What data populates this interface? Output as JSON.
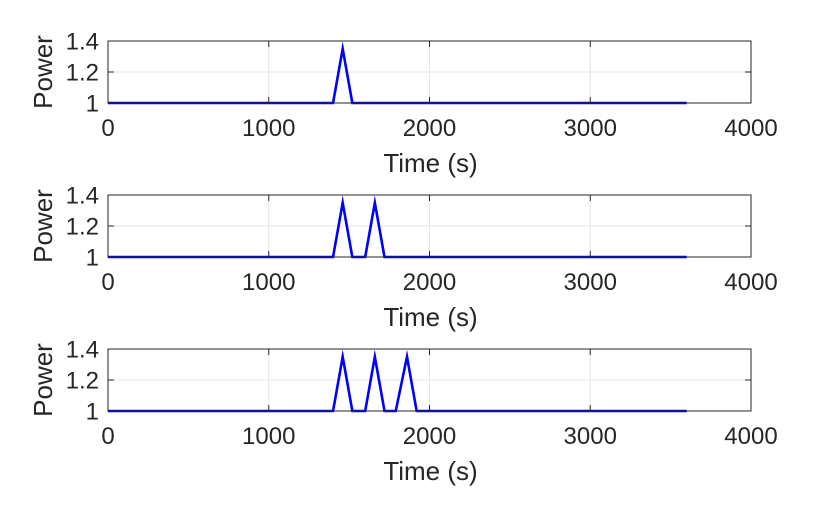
{
  "chart_data": [
    {
      "type": "line",
      "title": "",
      "xlabel": "Time (s)",
      "ylabel": "Power",
      "xlim": [
        0,
        4000
      ],
      "ylim": [
        1,
        1.4
      ],
      "xticks": [
        0,
        1000,
        2000,
        3000,
        4000
      ],
      "xtick_labels": [
        "0",
        "1000",
        "2000",
        "3000",
        "4000"
      ],
      "yticks": [
        1,
        1.2,
        1.4
      ],
      "ytick_labels": [
        "1",
        "1.2",
        "1.4"
      ],
      "grid": true,
      "series": [
        {
          "color": "#0000ff",
          "x": [
            0,
            1400,
            1460,
            1520,
            3600
          ],
          "y": [
            1,
            1,
            1.35,
            1,
            1
          ]
        }
      ]
    },
    {
      "type": "line",
      "title": "",
      "xlabel": "Time (s)",
      "ylabel": "Power",
      "xlim": [
        0,
        4000
      ],
      "ylim": [
        1,
        1.4
      ],
      "xticks": [
        0,
        1000,
        2000,
        3000,
        4000
      ],
      "xtick_labels": [
        "0",
        "1000",
        "2000",
        "3000",
        "4000"
      ],
      "yticks": [
        1,
        1.2,
        1.4
      ],
      "ytick_labels": [
        "1",
        "1.2",
        "1.4"
      ],
      "grid": true,
      "series": [
        {
          "color": "#0000ff",
          "x": [
            0,
            1400,
            1460,
            1520,
            1600,
            1660,
            1720,
            3600
          ],
          "y": [
            1,
            1,
            1.35,
            1,
            1,
            1.35,
            1,
            1
          ]
        }
      ]
    },
    {
      "type": "line",
      "title": "",
      "xlabel": "Time (s)",
      "ylabel": "Power",
      "xlim": [
        0,
        4000
      ],
      "ylim": [
        1,
        1.4
      ],
      "xticks": [
        0,
        1000,
        2000,
        3000,
        4000
      ],
      "xtick_labels": [
        "0",
        "1000",
        "2000",
        "3000",
        "4000"
      ],
      "yticks": [
        1,
        1.2,
        1.4
      ],
      "ytick_labels": [
        "1",
        "1.2",
        "1.4"
      ],
      "grid": true,
      "series": [
        {
          "color": "#0000ff",
          "x": [
            0,
            1400,
            1460,
            1520,
            1600,
            1660,
            1720,
            1790,
            1860,
            1920,
            3600
          ],
          "y": [
            1,
            1,
            1.35,
            1,
            1,
            1.35,
            1,
            1,
            1.35,
            1,
            1
          ]
        }
      ]
    }
  ]
}
